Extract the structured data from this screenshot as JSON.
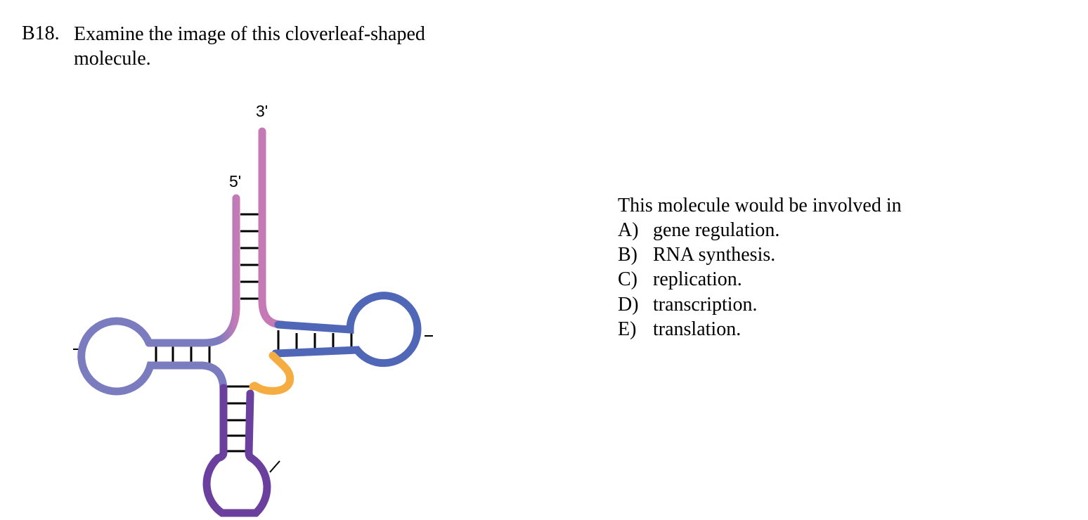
{
  "question": {
    "number": "B18.",
    "stem": "Examine the image of this cloverleaf-shaped molecule."
  },
  "figure": {
    "label_3_prime": "3'",
    "label_5_prime": "5'",
    "colors": {
      "acceptor_stem": "#c57ab6",
      "d_arm": "#7b7cc0",
      "t_arm": "#4f67b6",
      "anticodon_arm": "#6a3f9d",
      "variable_loop": "#f5ad42",
      "base_pairs": "#000000"
    }
  },
  "prompt": "This molecule would be involved in",
  "choices": [
    {
      "letter": "A)",
      "text": "gene regulation."
    },
    {
      "letter": "B)",
      "text": "RNA synthesis."
    },
    {
      "letter": "C)",
      "text": "replication."
    },
    {
      "letter": "D)",
      "text": "transcription."
    },
    {
      "letter": "E)",
      "text": "translation."
    }
  ]
}
